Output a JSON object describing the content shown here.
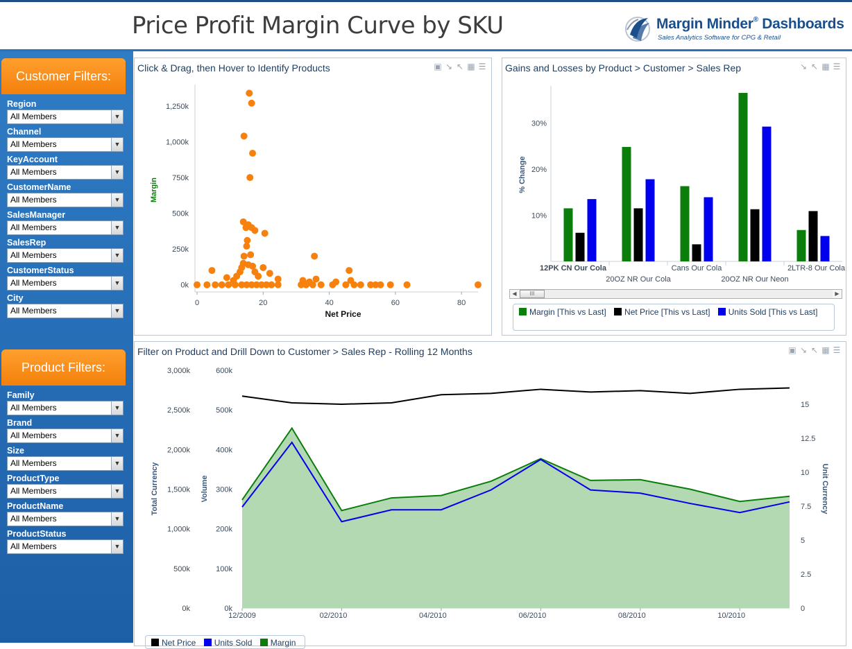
{
  "header": {
    "title": "Price Profit Margin Curve by SKU",
    "brand_name": "Margin Minder",
    "brand_reg": "®",
    "brand_name_suffix": " Dashboards",
    "brand_tagline": "Sales Analytics Software for CPG & Retail"
  },
  "colors": {
    "header_rule": "#1d4f86",
    "sidebar": "#2a6fb7",
    "filter_header": "#f7870f",
    "margin": "#0a7d0a",
    "net_price": "#000000",
    "units_sold": "#0000ee",
    "scatter_point": "#f7810f",
    "area_fill": "#b3d9b3"
  },
  "customer_filters": {
    "header": "Customer Filters:",
    "items": [
      {
        "label": "Region",
        "value": "All Members"
      },
      {
        "label": "Channel",
        "value": "All Members"
      },
      {
        "label": "KeyAccount",
        "value": "All Members"
      },
      {
        "label": "CustomerName",
        "value": "All Members"
      },
      {
        "label": "SalesManager",
        "value": "All Members"
      },
      {
        "label": "SalesRep",
        "value": "All Members"
      },
      {
        "label": "CustomerStatus",
        "value": "All Members"
      },
      {
        "label": "City",
        "value": "All Members"
      }
    ]
  },
  "product_filters": {
    "header": "Product Filters:",
    "items": [
      {
        "label": "Family",
        "value": "All Members"
      },
      {
        "label": "Brand",
        "value": "All Members"
      },
      {
        "label": "Size",
        "value": "All Members"
      },
      {
        "label": "ProductType",
        "value": "All Members"
      },
      {
        "label": "ProductName",
        "value": "All Members"
      },
      {
        "label": "ProductStatus",
        "value": "All Members"
      }
    ]
  },
  "panel_icons": [
    "export-icon",
    "collapse-icon",
    "expand-icon",
    "grid-icon",
    "menu-icon"
  ],
  "scatter_panel": {
    "title": "Click & Drag, then Hover to Identify Products"
  },
  "bar_panel": {
    "title": "Gains and Losses by Product > Customer > Sales Rep"
  },
  "line_panel": {
    "title": "Filter on Product and Drill Down to Customer > Sales Rep - Rolling 12 Months"
  },
  "chart_data": [
    {
      "type": "scatter",
      "xlabel": "Net Price",
      "ylabel": "Margin",
      "xlim": [
        0,
        85
      ],
      "ylim": [
        -50000,
        1400000
      ],
      "x_ticks": [
        0,
        20,
        40,
        60,
        80
      ],
      "x_tick_labels": [
        "0",
        "20",
        "40",
        "60",
        "80"
      ],
      "y_ticks": [
        0,
        250000,
        500000,
        750000,
        1000000,
        1250000
      ],
      "y_tick_labels": [
        "0k",
        "250k",
        "500k",
        "750k",
        "1,000k",
        "1,250k"
      ],
      "points": [
        [
          15.8,
          1340000
        ],
        [
          16.5,
          1270000
        ],
        [
          14.2,
          1040000
        ],
        [
          16.8,
          920000
        ],
        [
          16.0,
          750000
        ],
        [
          14.0,
          440000
        ],
        [
          15.5,
          420000
        ],
        [
          14.8,
          400000
        ],
        [
          16.5,
          400000
        ],
        [
          17.5,
          380000
        ],
        [
          20.5,
          360000
        ],
        [
          15.2,
          310000
        ],
        [
          15.0,
          270000
        ],
        [
          14.2,
          200000
        ],
        [
          16.2,
          210000
        ],
        [
          35.5,
          200000
        ],
        [
          14.0,
          150000
        ],
        [
          15.5,
          140000
        ],
        [
          13.5,
          120000
        ],
        [
          16.8,
          130000
        ],
        [
          20.0,
          120000
        ],
        [
          4.5,
          100000
        ],
        [
          13.0,
          90000
        ],
        [
          17.5,
          90000
        ],
        [
          22.0,
          80000
        ],
        [
          46.0,
          100000
        ],
        [
          9.0,
          50000
        ],
        [
          12.0,
          60000
        ],
        [
          18.5,
          60000
        ],
        [
          24.5,
          40000
        ],
        [
          11.0,
          30000
        ],
        [
          32.0,
          30000
        ],
        [
          36.0,
          40000
        ],
        [
          46.5,
          30000
        ],
        [
          34.0,
          20000
        ],
        [
          42.0,
          20000
        ],
        [
          0.0,
          0
        ],
        [
          3.0,
          0
        ],
        [
          5.5,
          0
        ],
        [
          7.5,
          0
        ],
        [
          9.5,
          0
        ],
        [
          11.5,
          0
        ],
        [
          13.5,
          0
        ],
        [
          15.0,
          0
        ],
        [
          16.5,
          0
        ],
        [
          18.0,
          0
        ],
        [
          19.5,
          0
        ],
        [
          21.0,
          0
        ],
        [
          22.5,
          0
        ],
        [
          24.5,
          0
        ],
        [
          31.5,
          0
        ],
        [
          33.0,
          0
        ],
        [
          35.0,
          0
        ],
        [
          37.5,
          0
        ],
        [
          41.0,
          0
        ],
        [
          45.0,
          0
        ],
        [
          47.5,
          0
        ],
        [
          49.5,
          0
        ],
        [
          52.5,
          0
        ],
        [
          54.0,
          0
        ],
        [
          55.5,
          0
        ],
        [
          58.5,
          0
        ],
        [
          63.5,
          0
        ],
        [
          85.0,
          0
        ]
      ]
    },
    {
      "type": "bar",
      "ylabel": "% Change",
      "ylim": [
        0,
        38
      ],
      "y_ticks": [
        10,
        20,
        30
      ],
      "y_tick_labels": [
        "10%",
        "20%",
        "30%"
      ],
      "categories": [
        "12PK CN Our Cola",
        "20OZ NR Our Cola",
        "Cans Our Cola",
        "20OZ NR Our Neon",
        "2LTR-8 Our Cola"
      ],
      "series": [
        {
          "name": "Margin [This vs Last]",
          "values": [
            11.5,
            24.8,
            16.3,
            36.5,
            6.8
          ]
        },
        {
          "name": "Net Price [This vs Last]",
          "values": [
            6.2,
            11.5,
            3.7,
            11.3,
            10.9
          ]
        },
        {
          "name": "Units Sold [This vs Last]",
          "values": [
            13.5,
            17.8,
            13.9,
            29.2,
            5.5
          ]
        }
      ],
      "legend": "bottom",
      "scrollbar_thumb": "III"
    },
    {
      "type": "area",
      "x_tick_labels": [
        "12/2009",
        "02/2010",
        "04/2010",
        "06/2010",
        "08/2010",
        "10/2010"
      ],
      "y_axes": [
        {
          "label": "Total Currency",
          "ticks": [
            "0k",
            "500k",
            "1,000k",
            "1,500k",
            "2,000k",
            "2,500k",
            "3,000k"
          ],
          "range": [
            0,
            3000000
          ]
        },
        {
          "label": "Volume",
          "ticks": [
            "0k",
            "100k",
            "200k",
            "300k",
            "400k",
            "500k",
            "600k"
          ],
          "range": [
            0,
            600000
          ]
        },
        {
          "label": "Unit Currency",
          "ticks": [
            "0",
            "2.5",
            "5",
            "7.5",
            "10",
            "12.5",
            "15"
          ],
          "range": [
            0,
            17.5
          ]
        }
      ],
      "series": [
        {
          "name": "Net Price",
          "axis": "Unit Currency",
          "values": [
            15.6,
            15.1,
            15.0,
            15.1,
            15.7,
            15.8,
            16.1,
            15.9,
            16.0,
            15.8,
            16.1,
            16.2
          ]
        },
        {
          "name": "Units Sold",
          "axis": "Volume",
          "values": [
            255000,
            418000,
            218000,
            248000,
            248000,
            298000,
            375000,
            298000,
            290000,
            264000,
            241000,
            268000
          ]
        },
        {
          "name": "Margin",
          "axis": "Total Currency",
          "values": [
            1365000,
            2270000,
            1230000,
            1390000,
            1420000,
            1600000,
            1885000,
            1610000,
            1620000,
            1500000,
            1345000,
            1410000
          ]
        }
      ],
      "legend": "bottom-left"
    }
  ]
}
